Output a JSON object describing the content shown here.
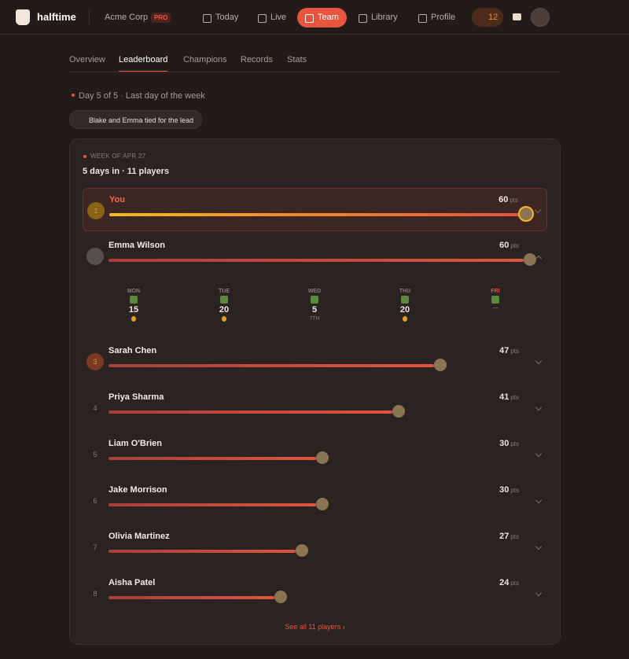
{
  "nav": {
    "brand": "halftime",
    "org": "Acme Corp",
    "badge": "PRO",
    "items": [
      "Today",
      "Live",
      "Team",
      "Library",
      "Profile"
    ],
    "active": 2,
    "streak": "12"
  },
  "tabs": {
    "items": [
      "Overview",
      "Leaderboard",
      "Champions",
      "Records",
      "Stats"
    ],
    "active": 1
  },
  "status": "Day 5 of 5 · Last day of the week",
  "pill": "Blake and Emma tied for the lead",
  "card": {
    "eyebrow": "WEEK OF APR 27",
    "summary": "5 days in · 11 players",
    "unit": "pts",
    "rows": [
      {
        "rank": "1",
        "name": "You",
        "points": 60
      },
      {
        "name": "Emma Wilson",
        "points": 60
      },
      {
        "rank": "3",
        "name": "Sarah Chen",
        "points": 47
      },
      {
        "rank": "4",
        "name": "Priya Sharma",
        "points": 41
      },
      {
        "rank": "5",
        "name": "Liam O'Brien",
        "points": 30
      },
      {
        "rank": "6",
        "name": "Jake Morrison",
        "points": 30
      },
      {
        "rank": "7",
        "name": "Olivia Martinez",
        "points": 27
      },
      {
        "rank": "8",
        "name": "Aisha Patel",
        "points": 24
      }
    ],
    "days": [
      {
        "day": "MON",
        "points": 15
      },
      {
        "day": "TUE",
        "points": 20
      },
      {
        "day": "WED",
        "points": 5,
        "place": "7TH"
      },
      {
        "day": "THU",
        "points": 20
      },
      {
        "day": "FRI",
        "place": "—"
      }
    ],
    "link": "See all 11 players"
  }
}
